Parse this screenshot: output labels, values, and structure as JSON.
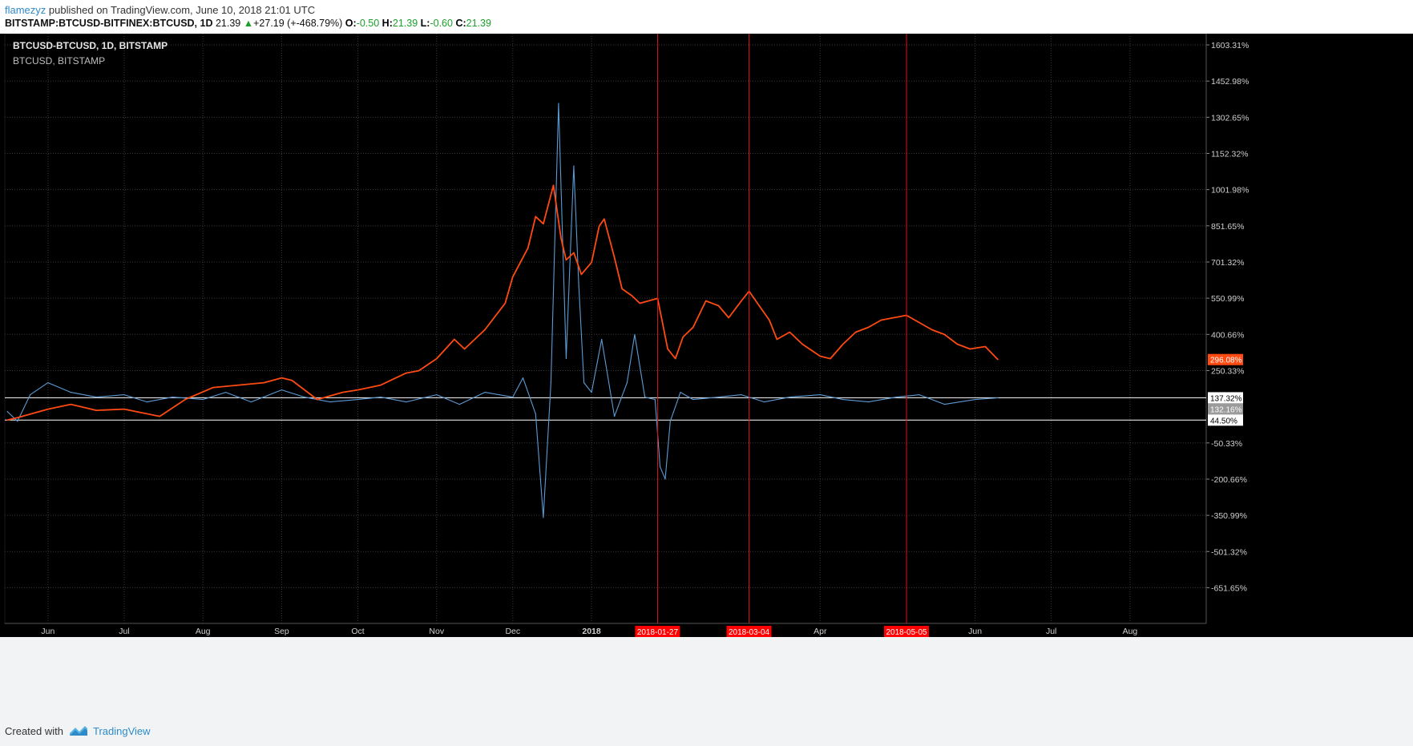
{
  "header": {
    "author": "flamezyz",
    "published_text": "published on TradingView.com, June 10, 2018 21:01 UTC",
    "symbol": "BITSTAMP:BTCUSD-BITFINEX:BTCUSD, 1D",
    "last": "21.39",
    "change": "+27.19 (+-468.79%)",
    "o_label": "O:",
    "o_value": "-0.50",
    "h_label": "H:",
    "h_value": "21.39",
    "l_label": "L:",
    "l_value": "-0.60",
    "c_label": "C:",
    "c_value": "21.39"
  },
  "legend": {
    "main": "BTCUSD-BTCUSD, 1D, BITSTAMP",
    "compare": "BTCUSD, BITSTAMP"
  },
  "footer": {
    "created_with": "Created with",
    "brand": "TradingView"
  },
  "colors": {
    "background": "#000000",
    "spread_line": "#5b9bd5",
    "btc_line": "#ff4a12",
    "marker_line": "#e01010",
    "marker_label_bg": "#ff0000",
    "grid": "#3a3a3a"
  },
  "chart_data": {
    "type": "line",
    "title": "BTCUSD-BTCUSD, 1D, BITSTAMP",
    "y_scale": "percent",
    "y_ticks": [
      "1603.31%",
      "1452.98%",
      "1302.65%",
      "1152.32%",
      "1001.98%",
      "851.65%",
      "701.32%",
      "550.99%",
      "400.66%",
      "250.33%",
      "-50.33%",
      "-200.66%",
      "-350.99%",
      "-501.32%",
      "-651.65%"
    ],
    "x_ticks": [
      "Jun",
      "Jul",
      "Aug",
      "Sep",
      "Oct",
      "Nov",
      "Dec",
      "2018",
      "Apr",
      "Jun",
      "Jul",
      "Aug"
    ],
    "ylim": [
      -800,
      1650
    ],
    "xlim": [
      "2017-05-15",
      "2018-08-31"
    ],
    "grid": true,
    "series": [
      {
        "name": "BTCUSD-BTCUSD, 1D, BITSTAMP",
        "color": "#5b9bd5",
        "x": [
          "2017-05-16",
          "2017-05-20",
          "2017-05-25",
          "2017-06-01",
          "2017-06-10",
          "2017-06-20",
          "2017-07-01",
          "2017-07-10",
          "2017-07-20",
          "2017-08-01",
          "2017-08-10",
          "2017-08-20",
          "2017-09-01",
          "2017-09-10",
          "2017-09-20",
          "2017-10-01",
          "2017-10-10",
          "2017-10-20",
          "2017-11-01",
          "2017-11-10",
          "2017-11-20",
          "2017-12-01",
          "2017-12-05",
          "2017-12-10",
          "2017-12-13",
          "2017-12-16",
          "2017-12-19",
          "2017-12-22",
          "2017-12-25",
          "2017-12-27",
          "2017-12-29",
          "2018-01-01",
          "2018-01-05",
          "2018-01-10",
          "2018-01-15",
          "2018-01-18",
          "2018-01-22",
          "2018-01-26",
          "2018-01-28",
          "2018-01-30",
          "2018-02-01",
          "2018-02-05",
          "2018-02-10",
          "2018-02-20",
          "2018-03-01",
          "2018-03-10",
          "2018-03-20",
          "2018-04-01",
          "2018-04-10",
          "2018-04-20",
          "2018-05-01",
          "2018-05-10",
          "2018-05-20",
          "2018-06-01",
          "2018-06-10"
        ],
        "values": [
          80,
          40,
          150,
          200,
          160,
          140,
          150,
          120,
          140,
          130,
          160,
          120,
          170,
          140,
          120,
          130,
          140,
          120,
          150,
          110,
          160,
          140,
          220,
          70,
          -360,
          200,
          1360,
          300,
          1100,
          600,
          200,
          160,
          380,
          60,
          200,
          400,
          140,
          130,
          -150,
          -200,
          40,
          160,
          130,
          140,
          150,
          120,
          140,
          150,
          130,
          120,
          140,
          150,
          110,
          130,
          137
        ]
      },
      {
        "name": "BTCUSD, BITSTAMP",
        "color": "#ff4a12",
        "x": [
          "2017-05-16",
          "2017-05-20",
          "2017-06-01",
          "2017-06-10",
          "2017-06-20",
          "2017-07-01",
          "2017-07-15",
          "2017-07-25",
          "2017-08-05",
          "2017-08-15",
          "2017-08-25",
          "2017-09-01",
          "2017-09-05",
          "2017-09-10",
          "2017-09-15",
          "2017-09-25",
          "2017-10-01",
          "2017-10-10",
          "2017-10-20",
          "2017-10-25",
          "2017-11-01",
          "2017-11-08",
          "2017-11-12",
          "2017-11-20",
          "2017-11-28",
          "2017-12-01",
          "2017-12-07",
          "2017-12-10",
          "2017-12-13",
          "2017-12-17",
          "2017-12-20",
          "2017-12-22",
          "2017-12-25",
          "2017-12-28",
          "2018-01-01",
          "2018-01-04",
          "2018-01-06",
          "2018-01-10",
          "2018-01-13",
          "2018-01-17",
          "2018-01-20",
          "2018-01-27",
          "2018-01-31",
          "2018-02-03",
          "2018-02-06",
          "2018-02-10",
          "2018-02-15",
          "2018-02-20",
          "2018-02-24",
          "2018-03-01",
          "2018-03-04",
          "2018-03-08",
          "2018-03-12",
          "2018-03-15",
          "2018-03-20",
          "2018-03-25",
          "2018-04-01",
          "2018-04-05",
          "2018-04-10",
          "2018-04-15",
          "2018-04-20",
          "2018-04-25",
          "2018-04-30",
          "2018-05-05",
          "2018-05-10",
          "2018-05-15",
          "2018-05-20",
          "2018-05-25",
          "2018-05-30",
          "2018-06-05",
          "2018-06-10"
        ],
        "values": [
          45,
          55,
          90,
          110,
          85,
          90,
          60,
          130,
          180,
          190,
          200,
          220,
          210,
          170,
          130,
          160,
          170,
          190,
          240,
          250,
          300,
          380,
          340,
          420,
          530,
          640,
          760,
          890,
          860,
          1020,
          800,
          710,
          740,
          650,
          700,
          850,
          880,
          720,
          590,
          560,
          530,
          550,
          340,
          300,
          390,
          430,
          540,
          520,
          470,
          540,
          580,
          520,
          460,
          380,
          410,
          360,
          310,
          300,
          360,
          410,
          430,
          460,
          470,
          480,
          450,
          420,
          400,
          360,
          340,
          350,
          296
        ]
      }
    ],
    "price_labels": [
      "296.08%",
      "137.32%",
      "132.16%",
      "44.50%"
    ],
    "horizontal_lines": [
      137.32,
      44.5
    ],
    "vertical_markers": [
      "2018-01-27",
      "2018-03-04",
      "2018-05-05"
    ]
  }
}
